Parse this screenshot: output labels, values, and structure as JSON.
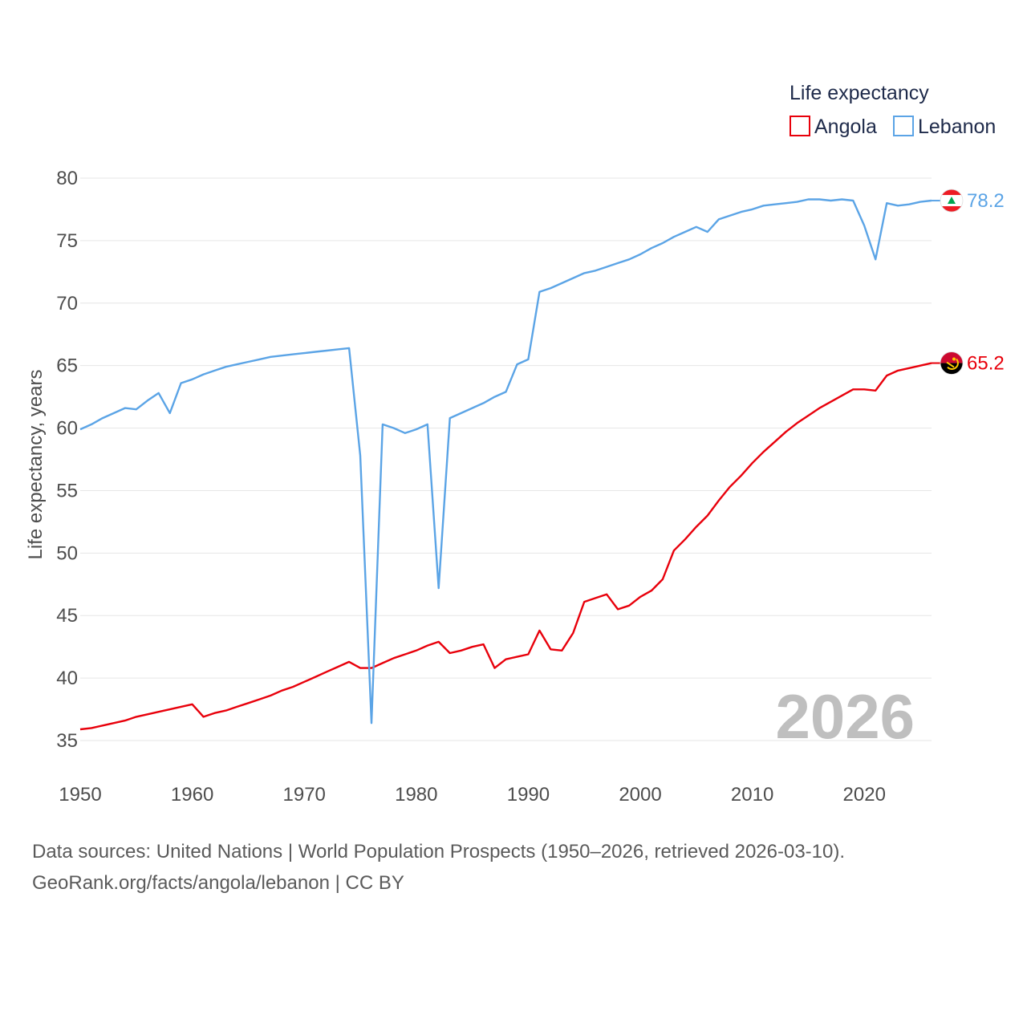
{
  "chart_data": {
    "type": "line",
    "legend_title": "Life expectancy",
    "ylabel": "Life expectancy, years",
    "xlabel": "",
    "xlim": [
      1950,
      2026
    ],
    "ylim": [
      33,
      82
    ],
    "yticks": [
      35,
      40,
      45,
      50,
      55,
      60,
      65,
      70,
      75,
      80
    ],
    "xticks": [
      1950,
      1960,
      1970,
      1980,
      1990,
      2000,
      2010,
      2020
    ],
    "watermark_year": "2026",
    "grid": true,
    "legend_position": "top-right",
    "x": [
      1950,
      1951,
      1952,
      1953,
      1954,
      1955,
      1956,
      1957,
      1958,
      1959,
      1960,
      1961,
      1962,
      1963,
      1964,
      1965,
      1966,
      1967,
      1968,
      1969,
      1970,
      1971,
      1972,
      1973,
      1974,
      1975,
      1976,
      1977,
      1978,
      1979,
      1980,
      1981,
      1982,
      1983,
      1984,
      1985,
      1986,
      1987,
      1988,
      1989,
      1990,
      1991,
      1992,
      1993,
      1994,
      1995,
      1996,
      1997,
      1998,
      1999,
      2000,
      2001,
      2002,
      2003,
      2004,
      2005,
      2006,
      2007,
      2008,
      2009,
      2010,
      2011,
      2012,
      2013,
      2014,
      2015,
      2016,
      2017,
      2018,
      2019,
      2020,
      2021,
      2022,
      2023,
      2024,
      2025,
      2026
    ],
    "series": [
      {
        "name": "Angola",
        "color": "#e8000b",
        "end_label": "65.2",
        "flag": "angola-flag-icon",
        "values": [
          35.9,
          36.0,
          36.2,
          36.4,
          36.6,
          36.9,
          37.1,
          37.3,
          37.5,
          37.7,
          37.9,
          36.9,
          37.2,
          37.4,
          37.7,
          38.0,
          38.3,
          38.6,
          39.0,
          39.3,
          39.7,
          40.1,
          40.5,
          40.9,
          41.3,
          40.8,
          40.8,
          41.2,
          41.6,
          41.9,
          42.2,
          42.6,
          42.9,
          42.0,
          42.2,
          42.5,
          42.7,
          40.8,
          41.5,
          41.7,
          41.9,
          43.8,
          42.3,
          42.2,
          43.6,
          46.1,
          46.4,
          46.7,
          45.5,
          45.8,
          46.5,
          47.0,
          47.9,
          50.2,
          51.1,
          52.1,
          53.0,
          54.2,
          55.3,
          56.2,
          57.2,
          58.1,
          58.9,
          59.7,
          60.4,
          61.0,
          61.6,
          62.1,
          62.6,
          63.1,
          63.1,
          63.0,
          64.2,
          64.6,
          64.8,
          65.0,
          65.2
        ]
      },
      {
        "name": "Lebanon",
        "color": "#5ba4e6",
        "end_label": "78.2",
        "flag": "lebanon-flag-icon",
        "values": [
          59.9,
          60.3,
          60.8,
          61.2,
          61.6,
          61.5,
          62.2,
          62.8,
          61.2,
          63.6,
          63.9,
          64.3,
          64.6,
          64.9,
          65.1,
          65.3,
          65.5,
          65.7,
          65.8,
          65.9,
          66.0,
          66.1,
          66.2,
          66.3,
          66.4,
          57.8,
          36.4,
          60.3,
          60.0,
          59.6,
          59.9,
          60.3,
          47.2,
          60.8,
          61.2,
          61.6,
          62.0,
          62.5,
          62.9,
          65.1,
          65.5,
          70.9,
          71.2,
          71.6,
          72.0,
          72.4,
          72.6,
          72.9,
          73.2,
          73.5,
          73.9,
          74.4,
          74.8,
          75.3,
          75.7,
          76.1,
          75.7,
          76.7,
          77.0,
          77.3,
          77.5,
          77.8,
          77.9,
          78.0,
          78.1,
          78.3,
          78.3,
          78.2,
          78.3,
          78.2,
          76.2,
          73.5,
          78.0,
          77.8,
          77.9,
          78.1,
          78.2
        ]
      }
    ]
  },
  "footer": {
    "source_line": "Data sources: United Nations | World Population Prospects (1950–2026, retrieved 2026-03-10).",
    "url_line": "GeoRank.org/facts/angola/lebanon | CC BY"
  }
}
